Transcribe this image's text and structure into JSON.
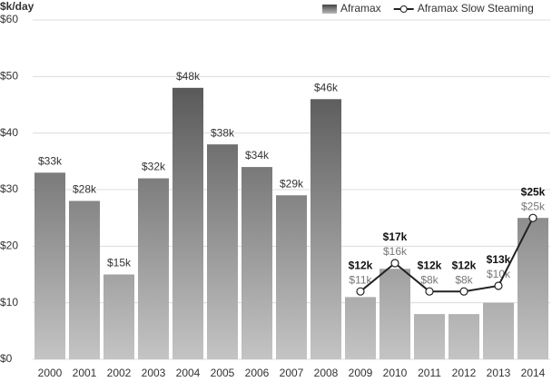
{
  "chart_data": {
    "type": "bar",
    "y_label": "$k/day",
    "categories": [
      "2000",
      "2001",
      "2002",
      "2003",
      "2004",
      "2005",
      "2006",
      "2007",
      "2008",
      "2009",
      "2010",
      "2011",
      "2012",
      "2013",
      "2014"
    ],
    "series": [
      {
        "name": "Aframax",
        "type": "bar",
        "color": "#666666",
        "values": [
          33,
          28,
          15,
          32,
          48,
          38,
          34,
          29,
          46,
          11,
          16,
          8,
          8,
          10,
          25
        ],
        "value_labels": [
          "$33k",
          "$28k",
          "$15k",
          "$32k",
          "$48k",
          "$38k",
          "$34k",
          "$29k",
          "$46k",
          "$11k",
          "$16k",
          "$8k",
          "$8k",
          "$10k",
          "$25k"
        ]
      },
      {
        "name": "Aframax Slow Steaming",
        "type": "line",
        "color": "#222222",
        "values": [
          null,
          null,
          null,
          null,
          null,
          null,
          null,
          null,
          null,
          12,
          17,
          12,
          12,
          13,
          25
        ],
        "value_labels": [
          null,
          null,
          null,
          null,
          null,
          null,
          null,
          null,
          null,
          "$12k",
          "$17k",
          "$12k",
          "$12k",
          "$13k",
          "$25k"
        ]
      }
    ],
    "ylim": [
      0,
      60
    ],
    "yticks": [
      {
        "value": 0,
        "label": "$0"
      },
      {
        "value": 10,
        "label": "$10"
      },
      {
        "value": 20,
        "label": "$20"
      },
      {
        "value": 30,
        "label": "$30"
      },
      {
        "value": 40,
        "label": "$40"
      },
      {
        "value": 50,
        "label": "$50"
      },
      {
        "value": 60,
        "label": "$60"
      }
    ],
    "grid": true,
    "legend": "top-right"
  }
}
